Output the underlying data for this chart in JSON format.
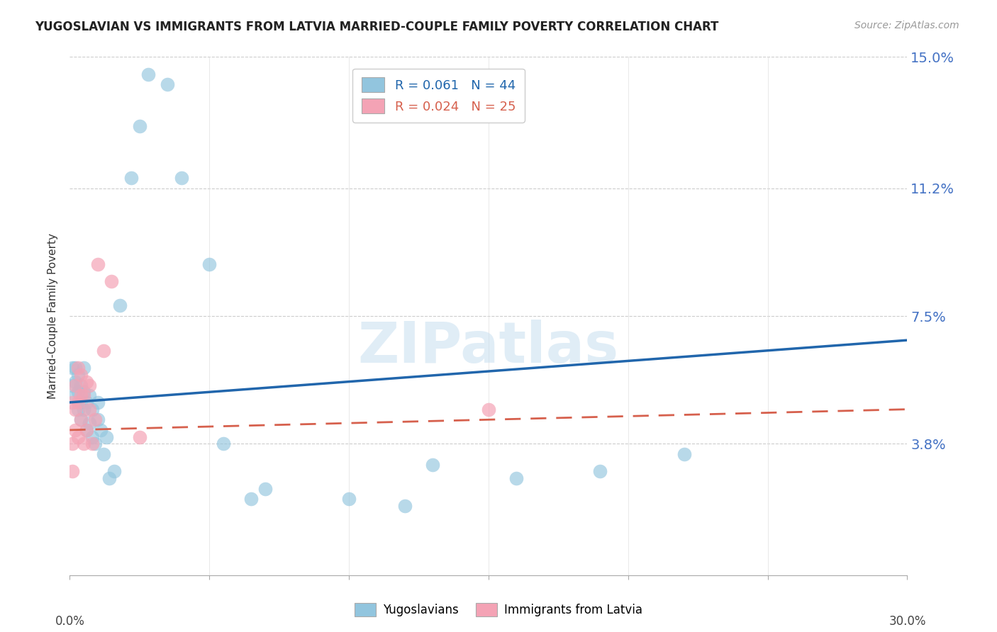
{
  "title": "YUGOSLAVIAN VS IMMIGRANTS FROM LATVIA MARRIED-COUPLE FAMILY POVERTY CORRELATION CHART",
  "source": "Source: ZipAtlas.com",
  "ylabel": "Married-Couple Family Poverty",
  "xlim": [
    0.0,
    0.3
  ],
  "ylim": [
    0.0,
    0.15
  ],
  "ytick_vals": [
    0.038,
    0.075,
    0.112,
    0.15
  ],
  "ytick_labels": [
    "3.8%",
    "7.5%",
    "11.2%",
    "15.0%"
  ],
  "series1_color": "#92c5de",
  "series2_color": "#f4a3b5",
  "trendline1_color": "#2166ac",
  "trendline2_color": "#d6604d",
  "watermark_text": "ZIPatlas",
  "watermark_color": "#c8dff0",
  "background_color": "#ffffff",
  "yug_x": [
    0.001,
    0.001,
    0.002,
    0.002,
    0.002,
    0.003,
    0.003,
    0.003,
    0.004,
    0.004,
    0.004,
    0.005,
    0.005,
    0.005,
    0.006,
    0.006,
    0.007,
    0.007,
    0.008,
    0.008,
    0.009,
    0.01,
    0.01,
    0.011,
    0.012,
    0.013,
    0.014,
    0.016,
    0.018,
    0.022,
    0.025,
    0.028,
    0.035,
    0.04,
    0.05,
    0.055,
    0.065,
    0.07,
    0.1,
    0.12,
    0.13,
    0.16,
    0.19,
    0.22
  ],
  "yug_y": [
    0.055,
    0.06,
    0.052,
    0.056,
    0.06,
    0.048,
    0.053,
    0.058,
    0.045,
    0.05,
    0.055,
    0.048,
    0.053,
    0.06,
    0.042,
    0.05,
    0.044,
    0.052,
    0.04,
    0.048,
    0.038,
    0.045,
    0.05,
    0.042,
    0.035,
    0.04,
    0.028,
    0.03,
    0.078,
    0.115,
    0.13,
    0.145,
    0.142,
    0.115,
    0.09,
    0.038,
    0.022,
    0.025,
    0.022,
    0.02,
    0.032,
    0.028,
    0.03,
    0.035
  ],
  "lat_x": [
    0.001,
    0.001,
    0.001,
    0.002,
    0.002,
    0.002,
    0.003,
    0.003,
    0.003,
    0.004,
    0.004,
    0.004,
    0.005,
    0.005,
    0.006,
    0.006,
    0.007,
    0.007,
    0.008,
    0.009,
    0.01,
    0.012,
    0.015,
    0.025,
    0.15
  ],
  "lat_y": [
    0.03,
    0.038,
    0.05,
    0.042,
    0.048,
    0.055,
    0.04,
    0.05,
    0.06,
    0.045,
    0.052,
    0.058,
    0.038,
    0.052,
    0.042,
    0.056,
    0.048,
    0.055,
    0.038,
    0.045,
    0.09,
    0.065,
    0.085,
    0.04,
    0.048
  ],
  "legend1_label": "R = 0.061   N = 44",
  "legend2_label": "R = 0.024   N = 25",
  "legend1_color": "#92c5de",
  "legend2_color": "#f4a3b5",
  "legend1_text_color": "#2166ac",
  "legend2_text_color": "#d6604d",
  "bottom_legend1": "Yugoslavians",
  "bottom_legend2": "Immigrants from Latvia"
}
